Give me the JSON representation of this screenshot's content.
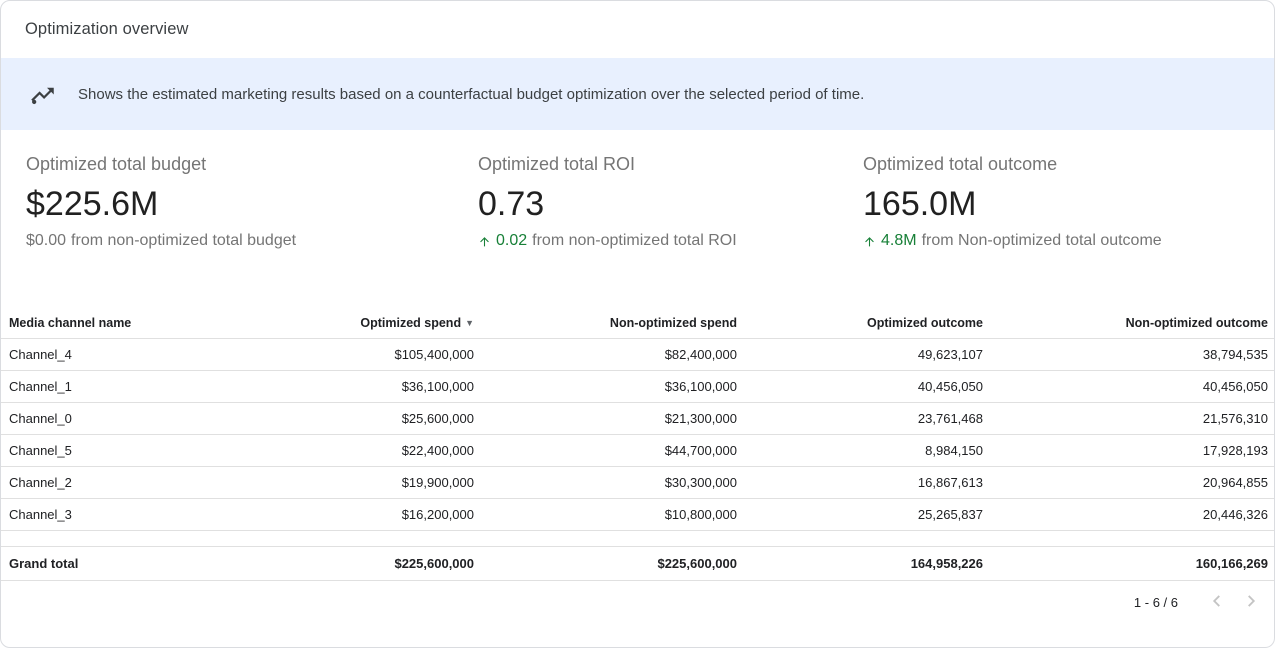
{
  "header": {
    "title": "Optimization overview"
  },
  "banner": {
    "text": "Shows the estimated marketing results based on a counterfactual budget optimization over the selected period of time."
  },
  "kpis": [
    {
      "label": "Optimized total budget",
      "value": "$225.6M",
      "delta_value": "$0.00",
      "delta_text": "from non-optimized total budget",
      "delta_positive": false
    },
    {
      "label": "Optimized total ROI",
      "value": "0.73",
      "delta_value": "0.02",
      "delta_text": "from non-optimized total ROI",
      "delta_positive": true
    },
    {
      "label": "Optimized total outcome",
      "value": "165.0M",
      "delta_value": "4.8M",
      "delta_text": "from Non-optimized total outcome",
      "delta_positive": true
    }
  ],
  "table": {
    "columns": [
      "Media channel name",
      "Optimized spend",
      "Non-optimized spend",
      "Optimized outcome",
      "Non-optimized outcome"
    ],
    "sort": {
      "column": "Optimized spend",
      "direction": "desc"
    },
    "rows": [
      [
        "Channel_4",
        "$105,400,000",
        "$82,400,000",
        "49,623,107",
        "38,794,535"
      ],
      [
        "Channel_1",
        "$36,100,000",
        "$36,100,000",
        "40,456,050",
        "40,456,050"
      ],
      [
        "Channel_0",
        "$25,600,000",
        "$21,300,000",
        "23,761,468",
        "21,576,310"
      ],
      [
        "Channel_5",
        "$22,400,000",
        "$44,700,000",
        "8,984,150",
        "17,928,193"
      ],
      [
        "Channel_2",
        "$19,900,000",
        "$30,300,000",
        "16,867,613",
        "20,964,855"
      ],
      [
        "Channel_3",
        "$16,200,000",
        "$10,800,000",
        "25,265,837",
        "20,446,326"
      ]
    ],
    "grand_total": [
      "Grand total",
      "$225,600,000",
      "$225,600,000",
      "164,958,226",
      "160,166,269"
    ]
  },
  "pagination": {
    "range": "1 - 6 / 6"
  },
  "icons": {
    "banner": "trending-up-insights",
    "kpi_delta": "arrow-upward",
    "sort": "triangle-down",
    "prev": "chevron-left",
    "next": "chevron-right"
  },
  "colors": {
    "positive": "#188038",
    "banner-bg": "#e8f0fe",
    "text-primary": "#202124",
    "text-secondary": "#757575",
    "border": "#e0e0e0"
  }
}
